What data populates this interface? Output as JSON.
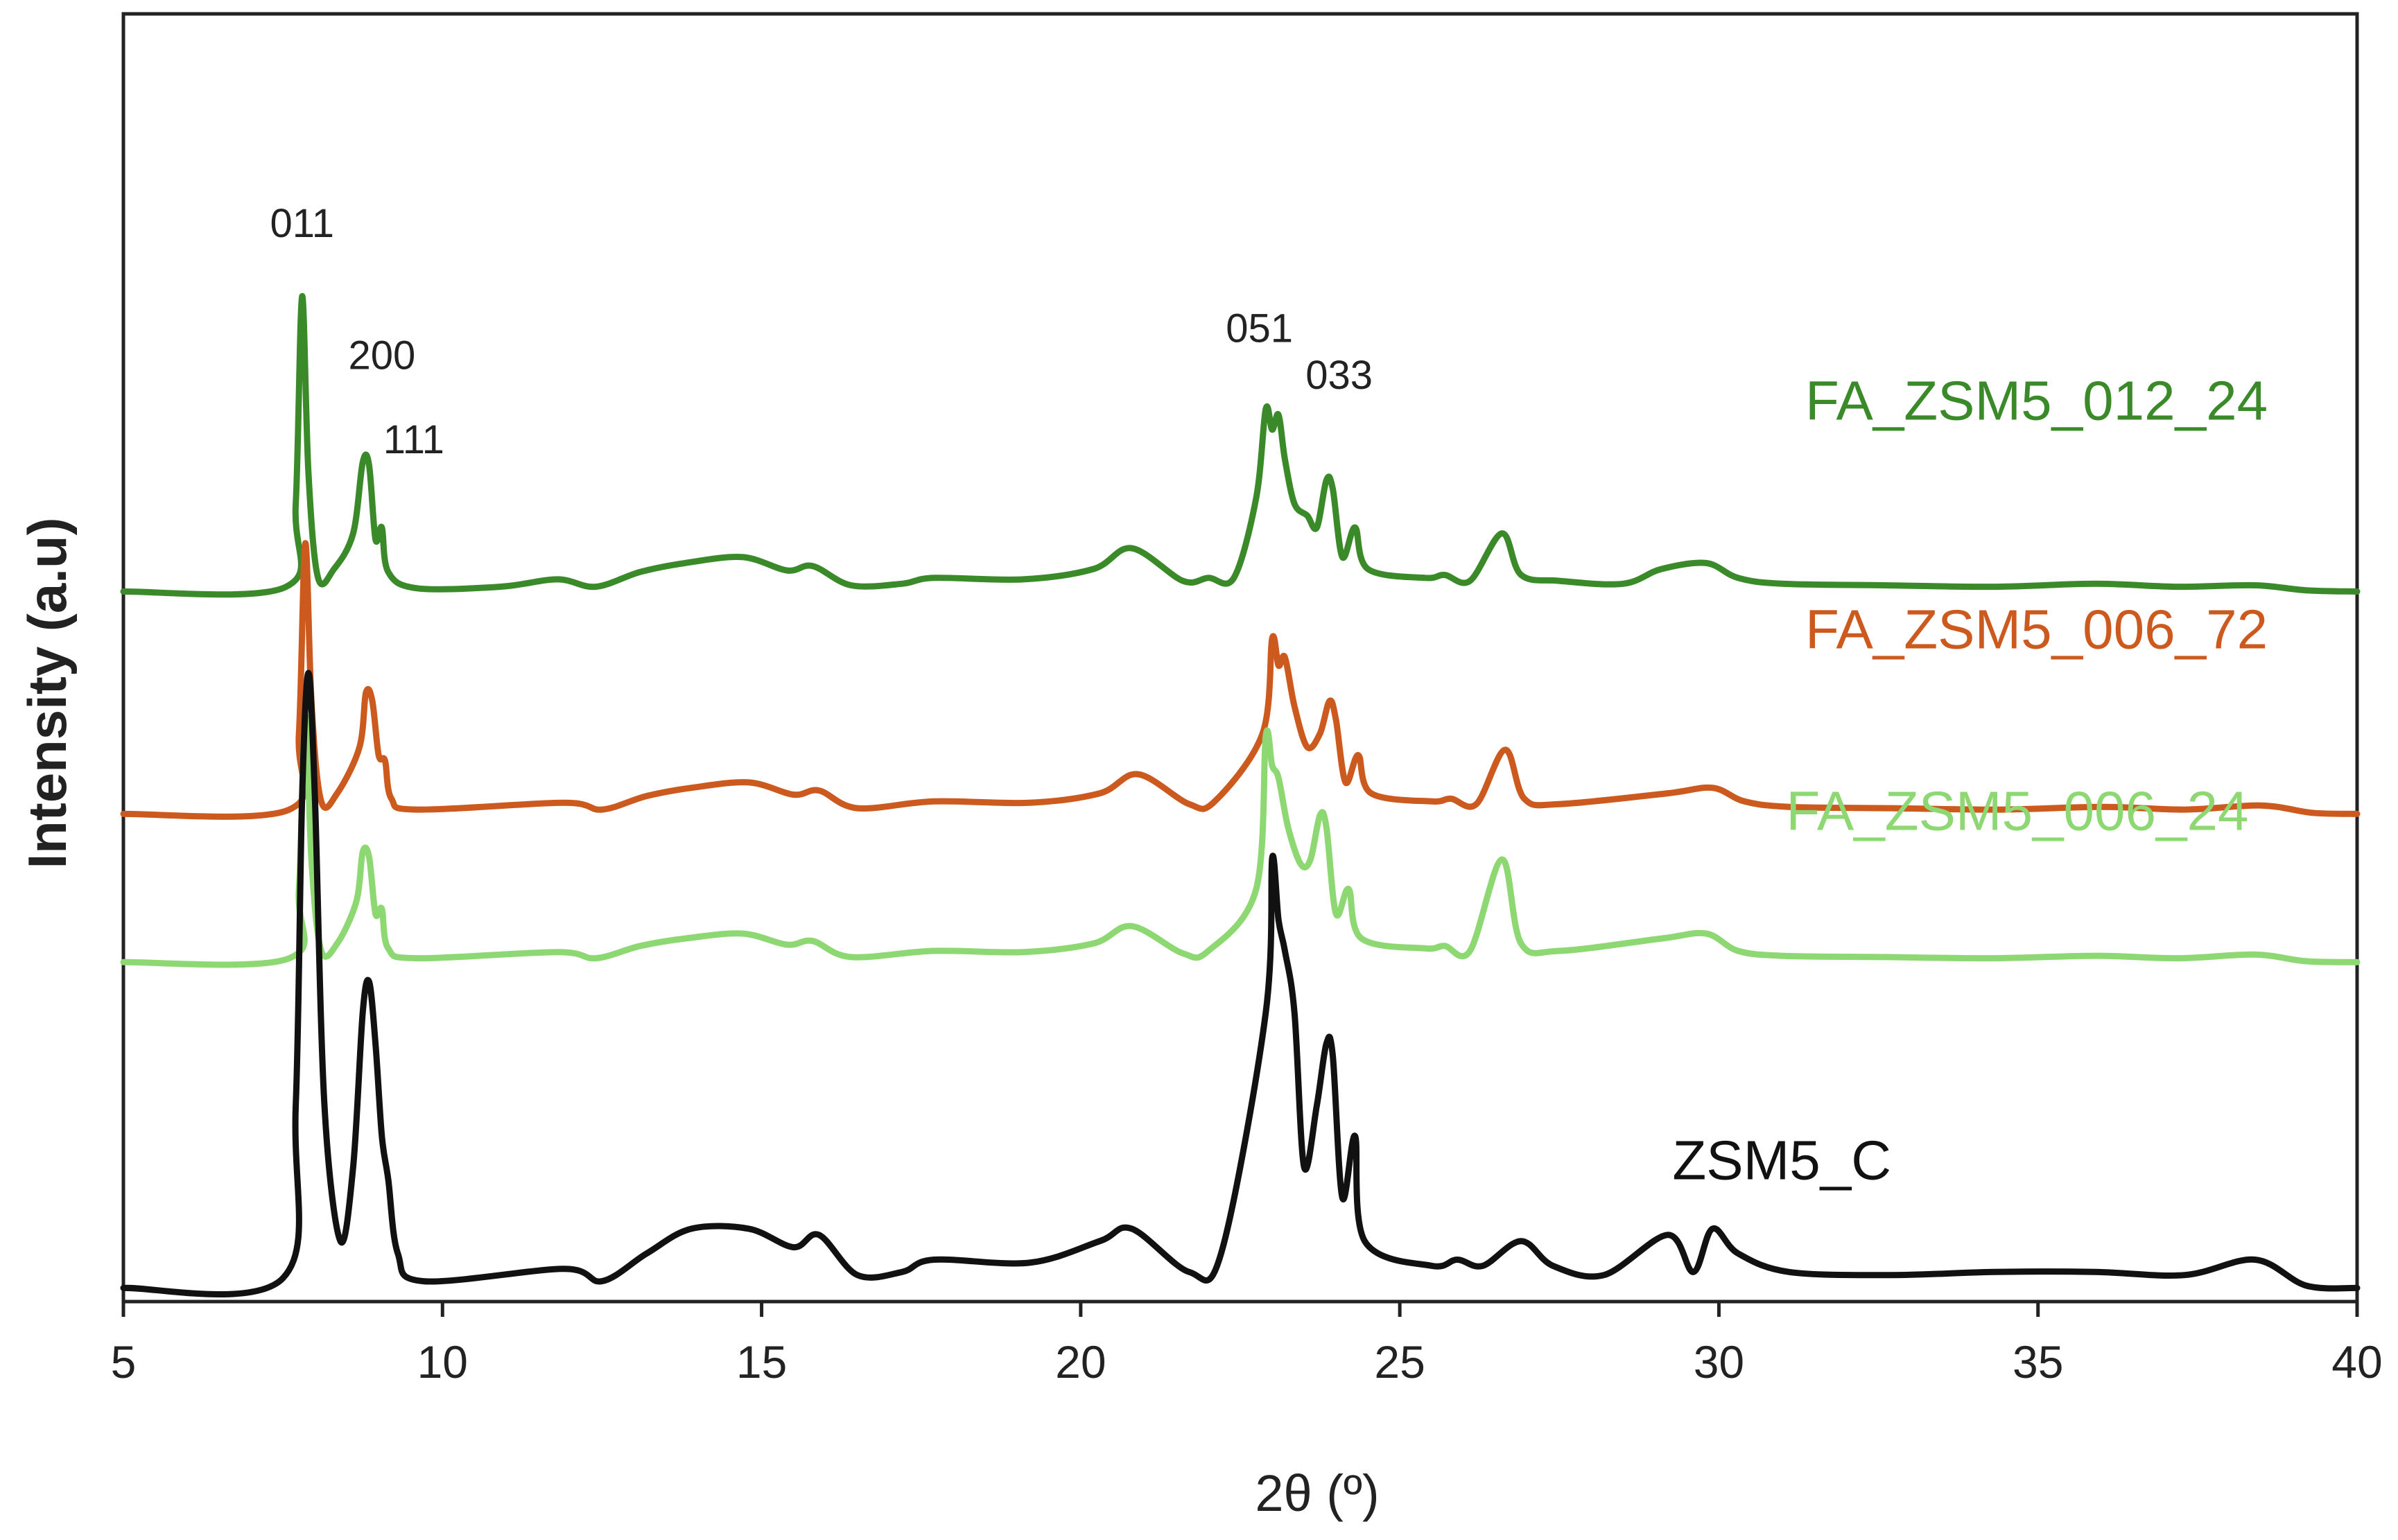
{
  "chart_data": {
    "type": "line",
    "xlabel": "2θ (º)",
    "ylabel": "Intensity (a.u)",
    "xlim": [
      5,
      40
    ],
    "xticks": [
      5,
      10,
      15,
      20,
      25,
      30,
      35,
      40
    ],
    "yticks_shown": false,
    "grid": false,
    "legend": "none",
    "series": [
      {
        "name": "FA_ZSM5_012_24",
        "color": "#3b8a2a",
        "offset": 0.565,
        "scale": 0.24,
        "points": [
          [
            5,
            0.004
          ],
          [
            7.55,
            0.02
          ],
          [
            7.7,
            0.3
          ],
          [
            7.8,
            1.0
          ],
          [
            7.9,
            0.4
          ],
          [
            8.05,
            0.05
          ],
          [
            8.3,
            0.08
          ],
          [
            8.6,
            0.2
          ],
          [
            8.75,
            0.44
          ],
          [
            8.85,
            0.43
          ],
          [
            8.95,
            0.18
          ],
          [
            9.05,
            0.22
          ],
          [
            9.15,
            0.07
          ],
          [
            9.6,
            0.015
          ],
          [
            10.9,
            0.02
          ],
          [
            11.8,
            0.045
          ],
          [
            12.4,
            0.02
          ],
          [
            13.1,
            0.07
          ],
          [
            13.8,
            0.1
          ],
          [
            14.7,
            0.12
          ],
          [
            15.4,
            0.075
          ],
          [
            15.8,
            0.09
          ],
          [
            16.4,
            0.025
          ],
          [
            17.2,
            0.03
          ],
          [
            17.7,
            0.05
          ],
          [
            19.1,
            0.045
          ],
          [
            20.2,
            0.08
          ],
          [
            20.8,
            0.15
          ],
          [
            21.6,
            0.04
          ],
          [
            22.0,
            0.05
          ],
          [
            22.4,
            0.05
          ],
          [
            22.75,
            0.32
          ],
          [
            22.9,
            0.62
          ],
          [
            23.0,
            0.55
          ],
          [
            23.1,
            0.6
          ],
          [
            23.2,
            0.45
          ],
          [
            23.35,
            0.3
          ],
          [
            23.55,
            0.26
          ],
          [
            23.7,
            0.22
          ],
          [
            23.85,
            0.38
          ],
          [
            23.95,
            0.35
          ],
          [
            24.1,
            0.12
          ],
          [
            24.3,
            0.22
          ],
          [
            24.5,
            0.08
          ],
          [
            25.4,
            0.05
          ],
          [
            25.7,
            0.06
          ],
          [
            26.1,
            0.04
          ],
          [
            26.6,
            0.2
          ],
          [
            26.9,
            0.06
          ],
          [
            27.5,
            0.04
          ],
          [
            28.5,
            0.03
          ],
          [
            29.1,
            0.08
          ],
          [
            29.8,
            0.1
          ],
          [
            30.3,
            0.05
          ],
          [
            31.0,
            0.03
          ],
          [
            32.6,
            0.025
          ],
          [
            34.3,
            0.02
          ],
          [
            35.9,
            0.03
          ],
          [
            37.2,
            0.02
          ],
          [
            38.4,
            0.025
          ],
          [
            39.2,
            0.008
          ],
          [
            40,
            0.004
          ]
        ]
      },
      {
        "name": "FA_ZSM5_006_72",
        "color": "#cc5a1f",
        "offset": 0.385,
        "scale": 0.22,
        "points": [
          [
            5,
            0.004
          ],
          [
            7.6,
            0.02
          ],
          [
            7.75,
            0.3
          ],
          [
            7.85,
            1.0
          ],
          [
            7.95,
            0.4
          ],
          [
            8.1,
            0.05
          ],
          [
            8.35,
            0.08
          ],
          [
            8.7,
            0.25
          ],
          [
            8.8,
            0.45
          ],
          [
            8.9,
            0.42
          ],
          [
            9.0,
            0.22
          ],
          [
            9.1,
            0.2
          ],
          [
            9.2,
            0.06
          ],
          [
            9.6,
            0.02
          ],
          [
            11.9,
            0.045
          ],
          [
            12.5,
            0.02
          ],
          [
            13.2,
            0.07
          ],
          [
            13.9,
            0.1
          ],
          [
            14.8,
            0.12
          ],
          [
            15.5,
            0.075
          ],
          [
            15.9,
            0.09
          ],
          [
            16.5,
            0.025
          ],
          [
            17.7,
            0.05
          ],
          [
            19.2,
            0.045
          ],
          [
            20.3,
            0.08
          ],
          [
            20.9,
            0.15
          ],
          [
            21.7,
            0.04
          ],
          [
            22.1,
            0.05
          ],
          [
            22.85,
            0.3
          ],
          [
            23.0,
            0.65
          ],
          [
            23.1,
            0.55
          ],
          [
            23.2,
            0.58
          ],
          [
            23.35,
            0.4
          ],
          [
            23.55,
            0.25
          ],
          [
            23.75,
            0.3
          ],
          [
            23.9,
            0.42
          ],
          [
            24.0,
            0.35
          ],
          [
            24.15,
            0.12
          ],
          [
            24.35,
            0.22
          ],
          [
            24.55,
            0.08
          ],
          [
            25.5,
            0.05
          ],
          [
            25.8,
            0.06
          ],
          [
            26.2,
            0.04
          ],
          [
            26.65,
            0.24
          ],
          [
            26.95,
            0.06
          ],
          [
            27.5,
            0.04
          ],
          [
            29.2,
            0.08
          ],
          [
            29.9,
            0.1
          ],
          [
            30.4,
            0.05
          ],
          [
            31.1,
            0.03
          ],
          [
            32.7,
            0.025
          ],
          [
            34.4,
            0.02
          ],
          [
            36.0,
            0.03
          ],
          [
            37.3,
            0.02
          ],
          [
            38.5,
            0.035
          ],
          [
            39.3,
            0.008
          ],
          [
            40,
            0.004
          ]
        ]
      },
      {
        "name": "FA_ZSM5_006_24",
        "color": "#8ed873",
        "offset": 0.265,
        "scale": 0.2,
        "points": [
          [
            5,
            0.004
          ],
          [
            7.6,
            0.02
          ],
          [
            7.75,
            0.3
          ],
          [
            7.85,
            1.0
          ],
          [
            7.95,
            0.4
          ],
          [
            8.1,
            0.05
          ],
          [
            8.35,
            0.08
          ],
          [
            8.65,
            0.25
          ],
          [
            8.75,
            0.45
          ],
          [
            8.85,
            0.43
          ],
          [
            8.95,
            0.2
          ],
          [
            9.05,
            0.22
          ],
          [
            9.15,
            0.06
          ],
          [
            9.6,
            0.02
          ],
          [
            11.8,
            0.045
          ],
          [
            12.4,
            0.02
          ],
          [
            13.1,
            0.07
          ],
          [
            13.8,
            0.1
          ],
          [
            14.7,
            0.12
          ],
          [
            15.4,
            0.075
          ],
          [
            15.8,
            0.09
          ],
          [
            16.4,
            0.025
          ],
          [
            17.7,
            0.05
          ],
          [
            19.1,
            0.045
          ],
          [
            20.2,
            0.08
          ],
          [
            20.8,
            0.15
          ],
          [
            21.6,
            0.04
          ],
          [
            22.0,
            0.05
          ],
          [
            22.75,
            0.3
          ],
          [
            22.9,
            0.92
          ],
          [
            23.0,
            0.8
          ],
          [
            23.1,
            0.75
          ],
          [
            23.25,
            0.55
          ],
          [
            23.45,
            0.4
          ],
          [
            23.6,
            0.42
          ],
          [
            23.75,
            0.6
          ],
          [
            23.85,
            0.55
          ],
          [
            24.0,
            0.2
          ],
          [
            24.2,
            0.3
          ],
          [
            24.4,
            0.1
          ],
          [
            25.4,
            0.06
          ],
          [
            25.7,
            0.07
          ],
          [
            26.1,
            0.05
          ],
          [
            26.6,
            0.42
          ],
          [
            26.9,
            0.08
          ],
          [
            27.5,
            0.05
          ],
          [
            29.1,
            0.1
          ],
          [
            29.8,
            0.12
          ],
          [
            30.3,
            0.05
          ],
          [
            31.0,
            0.03
          ],
          [
            32.6,
            0.025
          ],
          [
            34.3,
            0.02
          ],
          [
            35.9,
            0.03
          ],
          [
            37.2,
            0.02
          ],
          [
            38.4,
            0.035
          ],
          [
            39.2,
            0.008
          ],
          [
            40,
            0.004
          ]
        ]
      },
      {
        "name": "ZSM5_C",
        "color": "#111111",
        "offset": 0.0,
        "scale": 0.5,
        "points": [
          [
            5,
            0.004
          ],
          [
            7.5,
            0.02
          ],
          [
            7.7,
            0.3
          ],
          [
            7.8,
            0.8
          ],
          [
            7.9,
            1.0
          ],
          [
            8.0,
            0.8
          ],
          [
            8.15,
            0.3
          ],
          [
            8.4,
            0.08
          ],
          [
            8.6,
            0.2
          ],
          [
            8.75,
            0.45
          ],
          [
            8.85,
            0.5
          ],
          [
            8.95,
            0.4
          ],
          [
            9.05,
            0.25
          ],
          [
            9.15,
            0.18
          ],
          [
            9.3,
            0.06
          ],
          [
            9.7,
            0.015
          ],
          [
            11.9,
            0.035
          ],
          [
            12.5,
            0.015
          ],
          [
            13.2,
            0.06
          ],
          [
            13.9,
            0.1
          ],
          [
            14.8,
            0.1
          ],
          [
            15.5,
            0.07
          ],
          [
            15.9,
            0.09
          ],
          [
            16.5,
            0.025
          ],
          [
            17.2,
            0.03
          ],
          [
            17.7,
            0.05
          ],
          [
            19.2,
            0.045
          ],
          [
            20.3,
            0.08
          ],
          [
            20.8,
            0.1
          ],
          [
            21.7,
            0.03
          ],
          [
            22.2,
            0.06
          ],
          [
            22.9,
            0.45
          ],
          [
            23.0,
            0.7
          ],
          [
            23.1,
            0.6
          ],
          [
            23.2,
            0.55
          ],
          [
            23.35,
            0.45
          ],
          [
            23.5,
            0.2
          ],
          [
            23.7,
            0.3
          ],
          [
            23.85,
            0.4
          ],
          [
            23.95,
            0.38
          ],
          [
            24.1,
            0.15
          ],
          [
            24.3,
            0.25
          ],
          [
            24.45,
            0.08
          ],
          [
            25.5,
            0.04
          ],
          [
            25.9,
            0.05
          ],
          [
            26.3,
            0.04
          ],
          [
            26.9,
            0.08
          ],
          [
            27.4,
            0.04
          ],
          [
            28.2,
            0.025
          ],
          [
            29.2,
            0.09
          ],
          [
            29.6,
            0.03
          ],
          [
            29.9,
            0.1
          ],
          [
            30.3,
            0.06
          ],
          [
            31.1,
            0.03
          ],
          [
            32.7,
            0.025
          ],
          [
            34.3,
            0.03
          ],
          [
            35.9,
            0.03
          ],
          [
            37.3,
            0.025
          ],
          [
            38.4,
            0.05
          ],
          [
            39.2,
            0.008
          ],
          [
            40,
            0.004
          ]
        ]
      }
    ],
    "series_labels": [
      {
        "text": "FA_ZSM5_012_24",
        "color": "#3b8a2a",
        "x": 38.6,
        "y": 0.705
      },
      {
        "text": "FA_ZSM5_006_72",
        "color": "#cc5a1f",
        "x": 38.6,
        "y": 0.52
      },
      {
        "text": "FA_ZSM5_006_24",
        "color": "#8ed873",
        "x": 38.3,
        "y": 0.373
      },
      {
        "text": "ZSM5_C",
        "color": "#111111",
        "x": 32.7,
        "y": 0.09
      }
    ],
    "annotations": [
      {
        "text": "011",
        "x": 7.8,
        "y": 0.853
      },
      {
        "text": "200",
        "x": 9.05,
        "y": 0.746
      },
      {
        "text": "111",
        "x": 9.55,
        "y": 0.678
      },
      {
        "text": "051",
        "x": 22.8,
        "y": 0.768
      },
      {
        "text": "033",
        "x": 24.05,
        "y": 0.73
      }
    ]
  }
}
